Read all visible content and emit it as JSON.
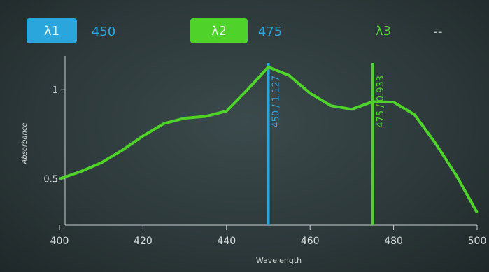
{
  "toolbar": {
    "items": [
      {
        "label": "λ1",
        "value": "450",
        "label_color": "#2aa6dc",
        "value_color": "#2aa6dc",
        "boxed": true
      },
      {
        "label": "λ2",
        "value": "475",
        "label_color": "#4fd32a",
        "value_color": "#2aa6dc",
        "boxed": true
      },
      {
        "label": "λ3",
        "value": "--",
        "label_color": "#4fd32a",
        "value_color": "#b9c4c4",
        "boxed": false
      }
    ]
  },
  "chart_data": {
    "type": "line",
    "xlabel": "Wavelength",
    "ylabel": "Absorbance",
    "x": [
      400,
      405,
      410,
      415,
      420,
      425,
      430,
      435,
      440,
      445,
      450,
      455,
      460,
      465,
      470,
      475,
      480,
      485,
      490,
      495,
      500
    ],
    "series": [
      {
        "color": "#4fd32a",
        "values": [
          0.5,
          0.54,
          0.59,
          0.66,
          0.74,
          0.81,
          0.84,
          0.85,
          0.88,
          1.0,
          1.127,
          1.08,
          0.98,
          0.91,
          0.89,
          0.933,
          0.93,
          0.86,
          0.7,
          0.52,
          0.31
        ]
      }
    ],
    "markers": [
      {
        "x": 450,
        "label": "450 / 1.127",
        "color": "#2aa6dc"
      },
      {
        "x": 475,
        "label": "475 / 0.933",
        "color": "#4fd32a"
      }
    ],
    "xlim": [
      400,
      500
    ],
    "xticks": [
      400,
      420,
      440,
      460,
      480,
      500
    ],
    "ylim": [
      0.24,
      1.15
    ],
    "yticks": [
      0.5,
      1
    ]
  }
}
